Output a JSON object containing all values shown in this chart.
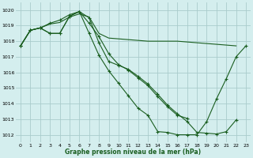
{
  "title": "Graphe pression niveau de la mer (hPa)",
  "bg_color": "#d4eeee",
  "grid_color": "#aacccc",
  "line_color": "#1a5e20",
  "xlim": [
    -0.5,
    23.5
  ],
  "ylim": [
    1011.5,
    1020.5
  ],
  "yticks": [
    1012,
    1013,
    1014,
    1015,
    1016,
    1017,
    1018,
    1019,
    1020
  ],
  "xticks": [
    0,
    1,
    2,
    3,
    4,
    5,
    6,
    7,
    8,
    9,
    10,
    11,
    12,
    13,
    14,
    15,
    16,
    17,
    18,
    19,
    20,
    21,
    22,
    23
  ],
  "series": [
    {
      "x": [
        0,
        1,
        2,
        3,
        4,
        5,
        6,
        7,
        8,
        9,
        10,
        11,
        12,
        13,
        14,
        15,
        16,
        17,
        18,
        19,
        20,
        21,
        22
      ],
      "y": [
        1017.7,
        1018.7,
        1018.85,
        1019.1,
        1019.2,
        1019.55,
        1019.75,
        1019.55,
        1018.5,
        1018.2,
        1018.15,
        1018.1,
        1018.05,
        1018.0,
        1018.0,
        1018.0,
        1018.0,
        1017.95,
        1017.9,
        1017.85,
        1017.8,
        1017.75,
        1017.7
      ],
      "has_markers": false
    },
    {
      "x": [
        0,
        1,
        2,
        3,
        4,
        5,
        6,
        7,
        8,
        9,
        10,
        11,
        12,
        13,
        14,
        15,
        16,
        17
      ],
      "y": [
        1017.7,
        1018.7,
        1018.85,
        1019.15,
        1019.35,
        1019.7,
        1019.9,
        1019.15,
        1018.3,
        1017.2,
        1016.5,
        1016.15,
        1015.65,
        1015.15,
        1014.45,
        1013.8,
        1013.25,
        1013.05
      ],
      "has_markers": true
    },
    {
      "x": [
        0,
        1,
        2,
        3,
        4,
        5,
        6,
        7,
        8,
        9,
        10,
        11,
        12,
        13,
        14,
        15,
        16,
        17,
        18,
        19,
        20,
        21,
        22
      ],
      "y": [
        1017.7,
        1018.7,
        1018.85,
        1018.5,
        1018.5,
        1019.6,
        1019.9,
        1019.5,
        1017.9,
        1016.7,
        1016.45,
        1016.2,
        1015.75,
        1015.25,
        1014.6,
        1013.9,
        1013.35,
        1012.85,
        1012.15,
        1012.1,
        1012.05,
        1012.2,
        1012.95
      ],
      "has_markers": true
    },
    {
      "x": [
        0,
        1,
        2,
        3,
        4,
        5,
        6,
        7,
        8,
        9,
        10,
        11,
        12,
        13,
        14,
        15,
        16,
        17,
        18,
        19,
        20,
        21,
        22,
        23
      ],
      "y": [
        1017.7,
        1018.7,
        1018.85,
        1018.5,
        1018.5,
        1019.6,
        1019.9,
        1018.5,
        1017.1,
        1016.1,
        1015.3,
        1014.5,
        1013.7,
        1013.25,
        1012.2,
        1012.15,
        1012.0,
        1012.0,
        1012.0,
        1012.85,
        1014.3,
        1015.6,
        1017.0,
        1017.7
      ],
      "has_markers": true
    }
  ]
}
